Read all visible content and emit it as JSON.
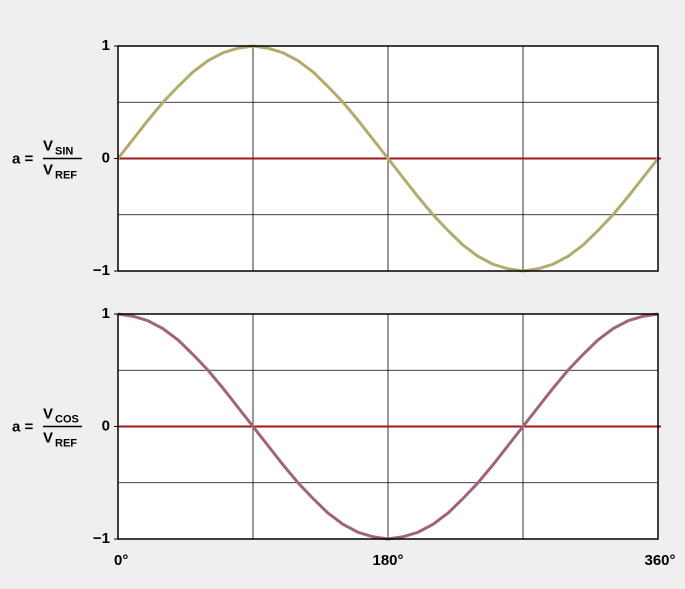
{
  "chart_data": [
    {
      "type": "line",
      "ylabel": {
        "prefix": "a =",
        "numerator": "V",
        "numerator_sub": "SIN",
        "denominator": "V",
        "denominator_sub": "REF"
      },
      "x": [
        0,
        10,
        20,
        30,
        40,
        50,
        60,
        70,
        80,
        90,
        100,
        110,
        120,
        130,
        140,
        150,
        160,
        170,
        180,
        190,
        200,
        210,
        220,
        230,
        240,
        250,
        260,
        270,
        280,
        290,
        300,
        310,
        320,
        330,
        340,
        350,
        360
      ],
      "series": [
        {
          "color": "#b3ab6c",
          "values": [
            0,
            0.17,
            0.34,
            0.5,
            0.64,
            0.77,
            0.87,
            0.94,
            0.98,
            1,
            0.98,
            0.94,
            0.87,
            0.77,
            0.64,
            0.5,
            0.34,
            0.17,
            0,
            -0.17,
            -0.34,
            -0.5,
            -0.64,
            -0.77,
            -0.87,
            -0.94,
            -0.98,
            -1,
            -0.98,
            -0.94,
            -0.87,
            -0.77,
            -0.64,
            -0.5,
            -0.34,
            -0.17,
            0
          ]
        }
      ],
      "xlim": [
        0,
        360
      ],
      "xgrid": [
        0,
        90,
        180,
        270,
        360
      ],
      "ylim": [
        -1,
        1
      ],
      "yticks": [
        1,
        0,
        {
          "value": -1,
          "label": "−1"
        }
      ],
      "ygrid": [
        -1,
        -0.5,
        0,
        0.5,
        1
      ],
      "zero_line_color": "#9e1a1a"
    },
    {
      "type": "line",
      "ylabel": {
        "prefix": "a =",
        "numerator": "V",
        "numerator_sub": "COS",
        "denominator": "V",
        "denominator_sub": "REF"
      },
      "x": [
        0,
        10,
        20,
        30,
        40,
        50,
        60,
        70,
        80,
        90,
        100,
        110,
        120,
        130,
        140,
        150,
        160,
        170,
        180,
        190,
        200,
        210,
        220,
        230,
        240,
        250,
        260,
        270,
        280,
        290,
        300,
        310,
        320,
        330,
        340,
        350,
        360
      ],
      "series": [
        {
          "color": "#a0637c",
          "values": [
            1,
            0.98,
            0.94,
            0.87,
            0.77,
            0.64,
            0.5,
            0.34,
            0.17,
            0,
            -0.17,
            -0.34,
            -0.5,
            -0.64,
            -0.77,
            -0.87,
            -0.94,
            -0.98,
            -1,
            -0.98,
            -0.94,
            -0.87,
            -0.77,
            -0.64,
            -0.5,
            -0.34,
            -0.17,
            0,
            0.17,
            0.34,
            0.5,
            0.64,
            0.77,
            0.87,
            0.94,
            0.98,
            1
          ]
        }
      ],
      "xlim": [
        0,
        360
      ],
      "xgrid": [
        0,
        90,
        180,
        270,
        360
      ],
      "xticks": [
        {
          "value": 0,
          "label": "0°"
        },
        {
          "value": 180,
          "label": "180°"
        },
        {
          "value": 360,
          "label": "360°"
        }
      ],
      "ylim": [
        -1,
        1
      ],
      "yticks": [
        1,
        0,
        {
          "value": -1,
          "label": "−1"
        }
      ],
      "ygrid": [
        -1,
        -0.5,
        0,
        0.5,
        1
      ],
      "zero_line_color": "#9e1a1a"
    }
  ]
}
